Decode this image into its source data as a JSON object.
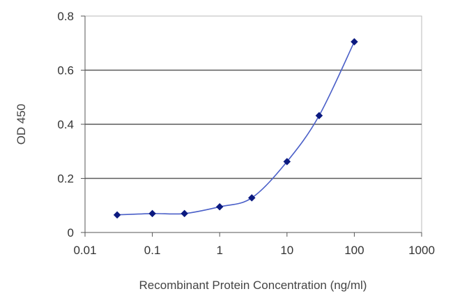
{
  "chart_data": {
    "type": "line",
    "title": "",
    "xlabel": "Recombinant Protein Concentration (ng/ml)",
    "ylabel": "OD 450",
    "xscale": "log",
    "xlim": [
      0.01,
      1000
    ],
    "ylim": [
      0,
      0.8
    ],
    "xticks": [
      0.01,
      0.1,
      1,
      10,
      100,
      1000
    ],
    "xtick_labels": [
      "0.01",
      "0.1",
      "1",
      "10",
      "100",
      "1000"
    ],
    "yticks": [
      0,
      0.2,
      0.4,
      0.6,
      0.8
    ],
    "ytick_labels": [
      "0",
      "0.2",
      "0.4",
      "0.6",
      "0.8"
    ],
    "grid": "horizontal",
    "legend": "none",
    "line_color": "#4a5fc8",
    "marker_color": "#0b1a80",
    "series": [
      {
        "x": [
          0.03,
          0.1,
          0.3,
          1,
          3,
          10,
          30,
          100
        ],
        "y": [
          0.065,
          0.07,
          0.07,
          0.095,
          0.128,
          0.262,
          0.432,
          0.705
        ]
      }
    ]
  }
}
